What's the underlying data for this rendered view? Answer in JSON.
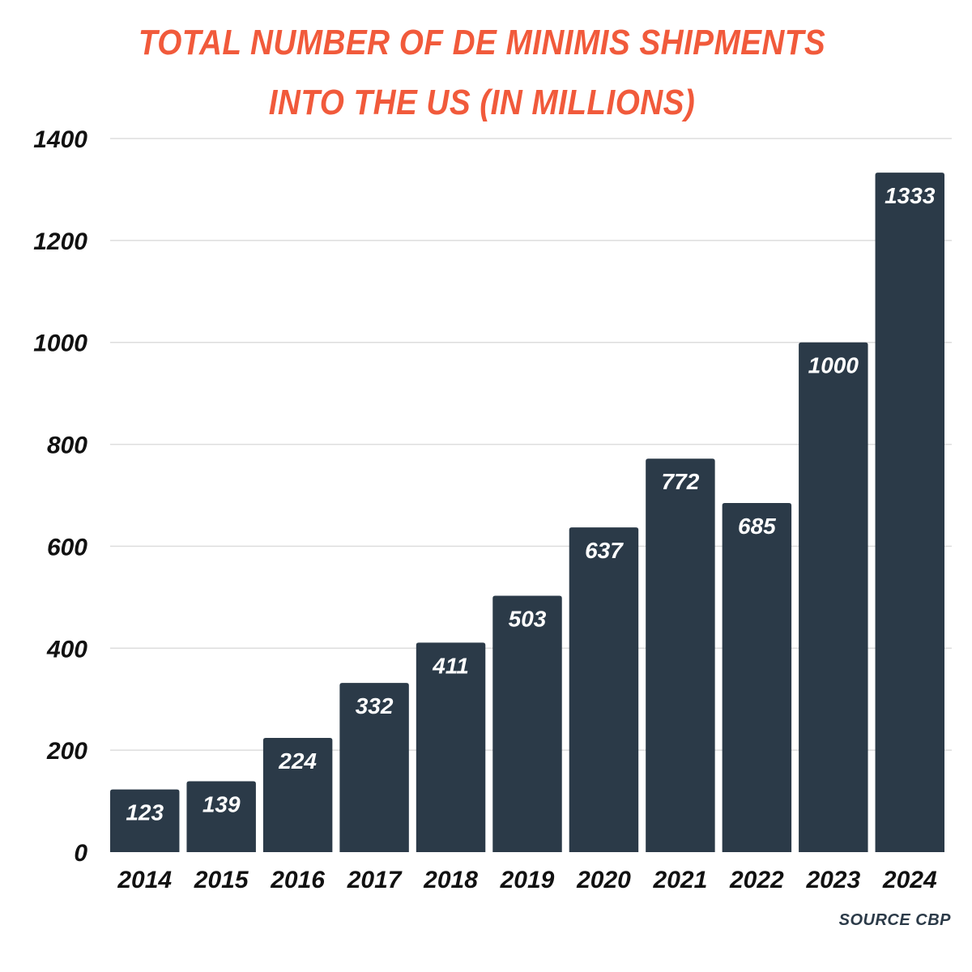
{
  "chart_data": {
    "type": "bar",
    "title_lines": [
      "TOTAL NUMBER OF DE MINIMIS SHIPMENTS",
      "INTO THE US (IN MILLIONS)"
    ],
    "categories": [
      "2014",
      "2015",
      "2016",
      "2017",
      "2018",
      "2019",
      "2020",
      "2021",
      "2022",
      "2023",
      "2024"
    ],
    "values": [
      123,
      139,
      224,
      332,
      411,
      503,
      637,
      772,
      685,
      1000,
      1333
    ],
    "data_labels": [
      "123",
      "139",
      "224",
      "332",
      "411",
      "503",
      "637",
      "772",
      "685",
      "1000",
      "1333"
    ],
    "yticks": [
      "0",
      "200",
      "400",
      "600",
      "800",
      "1000",
      "1200",
      "1400"
    ],
    "ylim": [
      0,
      1400
    ],
    "grid": true,
    "legend": "none",
    "source": "SOURCE CBP",
    "colors": {
      "bar": "#2b3a48",
      "title": "#f15a3b",
      "grid": "#dddddd",
      "label": "#ffffff"
    }
  }
}
